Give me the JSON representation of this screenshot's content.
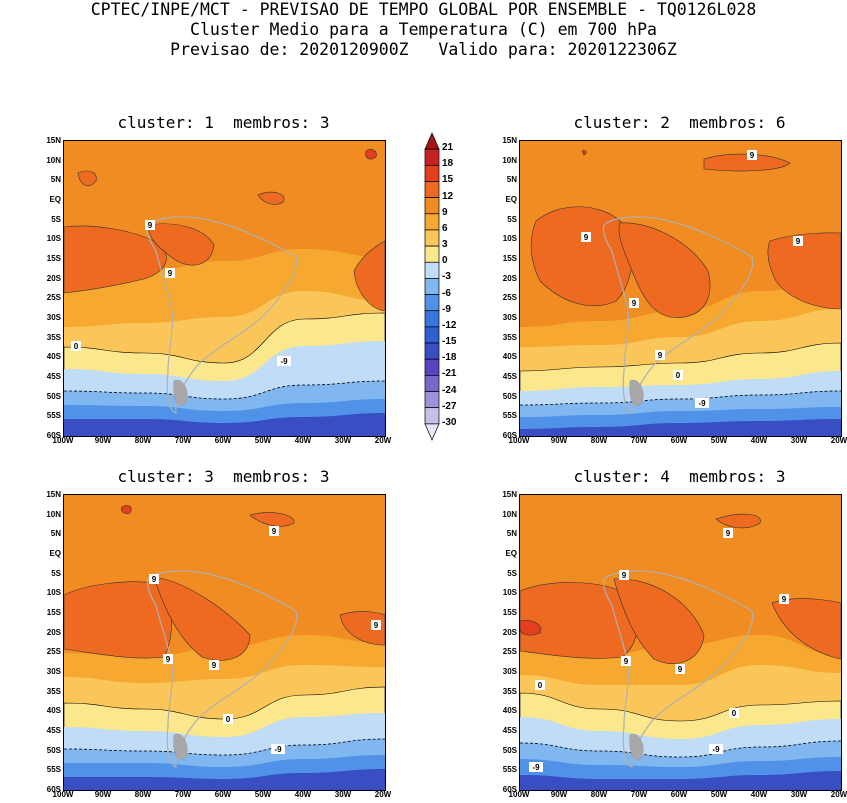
{
  "header": {
    "line1": "CPTEC/INPE/MCT - PREVISAO DE TEMPO GLOBAL POR ENSEMBLE - TQ0126L028",
    "line2": "Cluster Medio para a Temperatura (C) em 700 hPa",
    "line3": "Previsao de: 2020120900Z   Valido para: 2020122306Z"
  },
  "panels": [
    {
      "title": "cluster: 1  membros: 3",
      "contour_labels": [
        "9",
        "9",
        "0",
        "-9"
      ]
    },
    {
      "title": "cluster: 2  membros: 6",
      "contour_labels": [
        "9",
        "9",
        "9",
        "9",
        "9",
        "0",
        "-9"
      ]
    },
    {
      "title": "cluster: 3  membros: 3",
      "contour_labels": [
        "9",
        "9",
        "9",
        "9",
        "9",
        "0",
        "-9"
      ]
    },
    {
      "title": "cluster: 4  membros: 3",
      "contour_labels": [
        "9",
        "9",
        "9",
        "9",
        "9",
        "0",
        "0",
        "-9",
        "-9"
      ]
    }
  ],
  "lat_labels": [
    "15N",
    "10N",
    "5N",
    "EQ",
    "5S",
    "10S",
    "15S",
    "20S",
    "25S",
    "30S",
    "35S",
    "40S",
    "45S",
    "50S",
    "55S",
    "60S"
  ],
  "lon_labels": [
    "100W",
    "90W",
    "80W",
    "70W",
    "60W",
    "50W",
    "40W",
    "30W",
    "20W"
  ],
  "colorbar": {
    "labels": [
      "21",
      "18",
      "15",
      "12",
      "9",
      "6",
      "3",
      "0",
      "-3",
      "-6",
      "-9",
      "-12",
      "-15",
      "-18",
      "-21",
      "-24",
      "-27",
      "-30"
    ],
    "colors": [
      "#a51515",
      "#c62222",
      "#e33f1c",
      "#ee6a21",
      "#f08c22",
      "#f6a830",
      "#fbc659",
      "#fbe78c",
      "#c1dcf6",
      "#80b7f0",
      "#4f92e8",
      "#3a74dd",
      "#2f5fd0",
      "#3a4ec4",
      "#5a45bf",
      "#7868c9",
      "#9c94d8",
      "#c4c0e8",
      "#e6e4f4"
    ]
  }
}
